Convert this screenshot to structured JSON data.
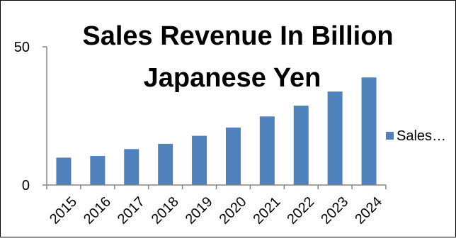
{
  "chart_data": {
    "type": "bar",
    "title_line1": "Sales Revenue In Billion",
    "title_line2": "Japanese Yen",
    "categories": [
      "2015",
      "2016",
      "2017",
      "2018",
      "2019",
      "2020",
      "2021",
      "2022",
      "2023",
      "2024"
    ],
    "series": [
      {
        "name": "Sales…",
        "values": [
          9.9,
          10.5,
          13.0,
          14.9,
          17.8,
          20.8,
          24.8,
          28.7,
          33.8,
          38.9
        ]
      }
    ],
    "y_ticks": [
      "0",
      "50"
    ],
    "ylim": [
      0,
      50
    ],
    "grid": false,
    "legend_position": "right",
    "colors": {
      "bar": "#4f81bd",
      "axis": "#868686",
      "text": "#000000",
      "border": "#000000"
    }
  }
}
